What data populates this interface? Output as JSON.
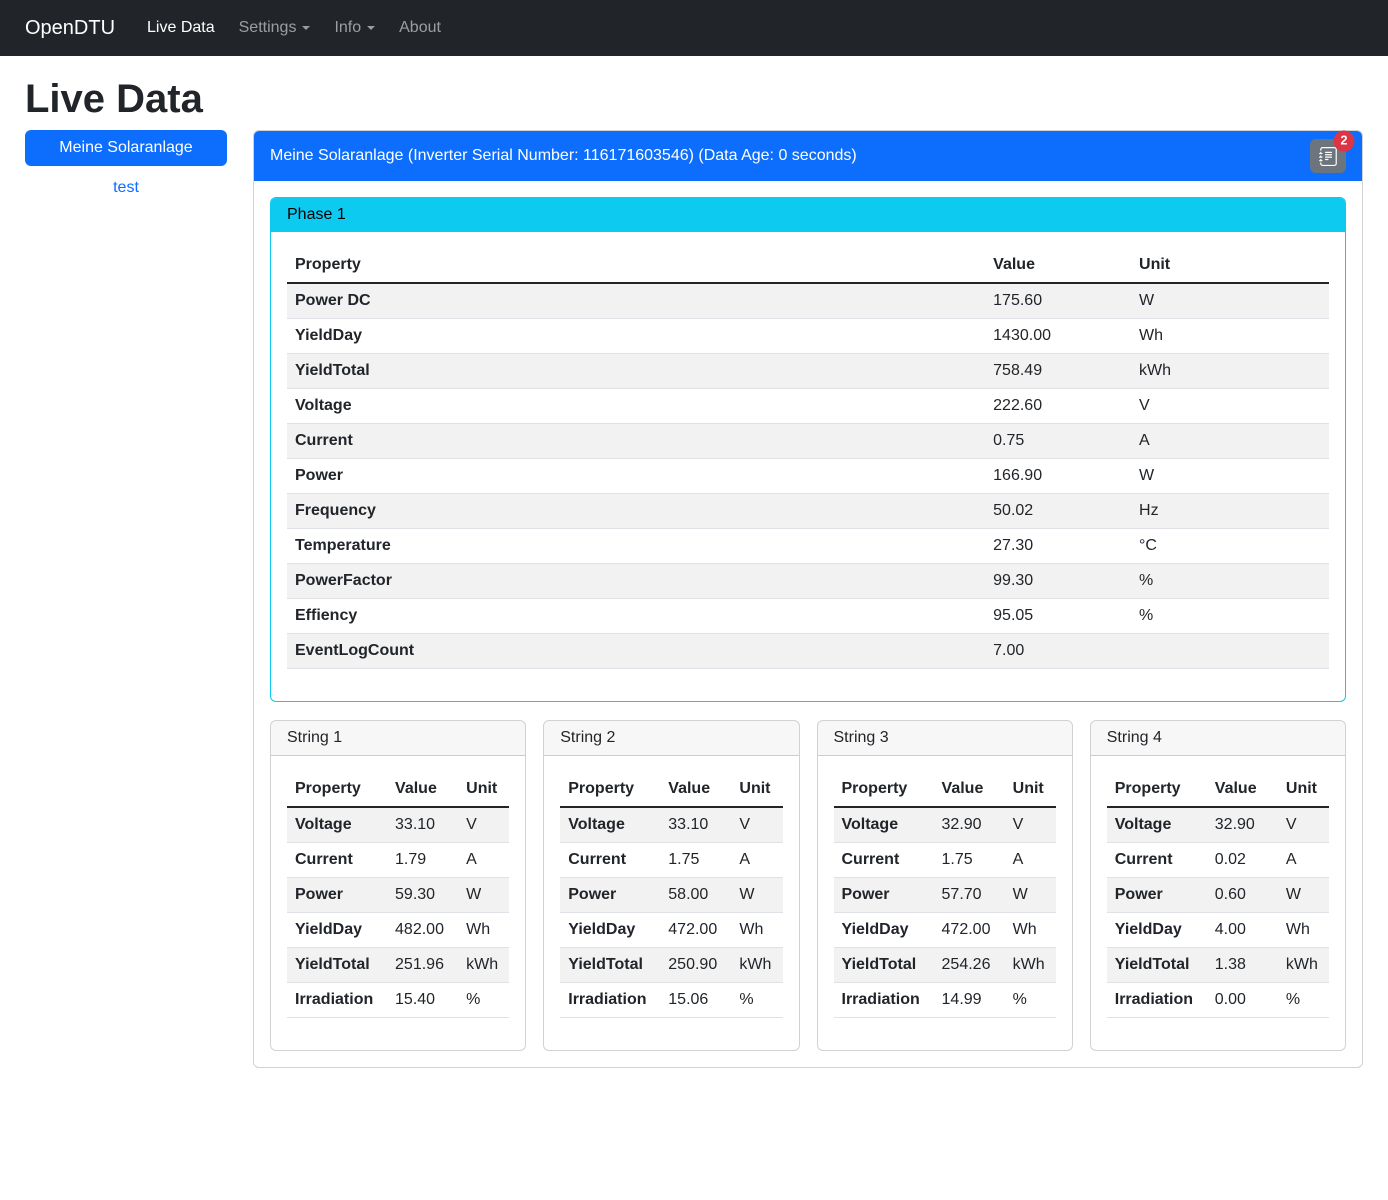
{
  "colors": {
    "primary": "#0d6efd",
    "info": "#0dcaf0",
    "secondary": "#6c757d",
    "danger": "#dc3545",
    "navbar_bg": "#212529"
  },
  "navbar": {
    "brand": "OpenDTU",
    "items": [
      {
        "label": "Live Data",
        "active": true,
        "dropdown": false
      },
      {
        "label": "Settings",
        "active": false,
        "dropdown": true
      },
      {
        "label": "Info",
        "active": false,
        "dropdown": true
      },
      {
        "label": "About",
        "active": false,
        "dropdown": false
      }
    ]
  },
  "page": {
    "title": "Live Data"
  },
  "sidebar": {
    "inverters": [
      {
        "label": "Meine Solaranlage",
        "active": true
      },
      {
        "label": "test",
        "active": false
      }
    ]
  },
  "panel": {
    "header": "Meine Solaranlage (Inverter Serial Number: 116171603546) (Data Age: 0 seconds)",
    "eventlog_badge": "2",
    "eventlog_icon": "journal-text-icon",
    "phase": {
      "title": "Phase 1",
      "columns": [
        "Property",
        "Value",
        "Unit"
      ],
      "rows": [
        [
          "Power DC",
          "175.60",
          "W"
        ],
        [
          "YieldDay",
          "1430.00",
          "Wh"
        ],
        [
          "YieldTotal",
          "758.49",
          "kWh"
        ],
        [
          "Voltage",
          "222.60",
          "V"
        ],
        [
          "Current",
          "0.75",
          "A"
        ],
        [
          "Power",
          "166.90",
          "W"
        ],
        [
          "Frequency",
          "50.02",
          "Hz"
        ],
        [
          "Temperature",
          "27.30",
          "°C"
        ],
        [
          "PowerFactor",
          "99.30",
          "%"
        ],
        [
          "Effiency",
          "95.05",
          "%"
        ],
        [
          "EventLogCount",
          "7.00",
          ""
        ]
      ]
    },
    "strings": [
      {
        "title": "String 1",
        "columns": [
          "Property",
          "Value",
          "Unit"
        ],
        "rows": [
          [
            "Voltage",
            "33.10",
            "V"
          ],
          [
            "Current",
            "1.79",
            "A"
          ],
          [
            "Power",
            "59.30",
            "W"
          ],
          [
            "YieldDay",
            "482.00",
            "Wh"
          ],
          [
            "YieldTotal",
            "251.96",
            "kWh"
          ],
          [
            "Irradiation",
            "15.40",
            "%"
          ]
        ]
      },
      {
        "title": "String 2",
        "columns": [
          "Property",
          "Value",
          "Unit"
        ],
        "rows": [
          [
            "Voltage",
            "33.10",
            "V"
          ],
          [
            "Current",
            "1.75",
            "A"
          ],
          [
            "Power",
            "58.00",
            "W"
          ],
          [
            "YieldDay",
            "472.00",
            "Wh"
          ],
          [
            "YieldTotal",
            "250.90",
            "kWh"
          ],
          [
            "Irradiation",
            "15.06",
            "%"
          ]
        ]
      },
      {
        "title": "String 3",
        "columns": [
          "Property",
          "Value",
          "Unit"
        ],
        "rows": [
          [
            "Voltage",
            "32.90",
            "V"
          ],
          [
            "Current",
            "1.75",
            "A"
          ],
          [
            "Power",
            "57.70",
            "W"
          ],
          [
            "YieldDay",
            "472.00",
            "Wh"
          ],
          [
            "YieldTotal",
            "254.26",
            "kWh"
          ],
          [
            "Irradiation",
            "14.99",
            "%"
          ]
        ]
      },
      {
        "title": "String 4",
        "columns": [
          "Property",
          "Value",
          "Unit"
        ],
        "rows": [
          [
            "Voltage",
            "32.90",
            "V"
          ],
          [
            "Current",
            "0.02",
            "A"
          ],
          [
            "Power",
            "0.60",
            "W"
          ],
          [
            "YieldDay",
            "4.00",
            "Wh"
          ],
          [
            "YieldTotal",
            "1.38",
            "kWh"
          ],
          [
            "Irradiation",
            "0.00",
            "%"
          ]
        ]
      }
    ]
  }
}
